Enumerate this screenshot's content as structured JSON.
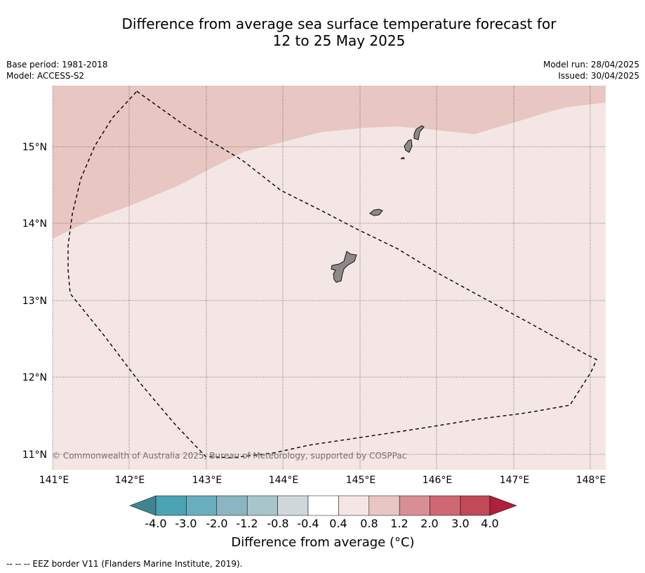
{
  "title": {
    "line1": "Difference from average sea surface temperature forecast for",
    "line2": "12 to 25 May 2025"
  },
  "meta": {
    "base_period": "Base period: 1981-2018",
    "model": "Model: ACCESS-S2",
    "model_run": "Model run: 28/04/2025",
    "issued": "Issued: 30/04/2025"
  },
  "map": {
    "lat_labels": [
      "15°N",
      "14°N",
      "13°N",
      "12°N",
      "11°N"
    ],
    "lon_labels": [
      "141°E",
      "142°E",
      "143°E",
      "144°E",
      "145°E",
      "146°E",
      "147°E",
      "148°E"
    ],
    "copyright": "© Commonwealth of Australia 2025, Bureau of Meteorology, supported by COSPPac",
    "colors": {
      "anomaly_0_4_to_0_8": "#f4e6e4",
      "anomaly_0_8_to_1_2": "#e8c6c1",
      "land": "#8c8988"
    }
  },
  "colorbar": {
    "labels": [
      "-4.0",
      "-3.0",
      "-2.0",
      "-1.2",
      "-0.8",
      "-0.4",
      "0.4",
      "0.8",
      "1.2",
      "2.0",
      "3.0",
      "4.0"
    ],
    "colors": [
      "#3f8591",
      "#4aa4b4",
      "#69aebd",
      "#8ab6c2",
      "#a8c5cb",
      "#d0d8db",
      "#ffffff",
      "#f4e6e4",
      "#e8c6c1",
      "#d98e95",
      "#cf6873",
      "#c24957",
      "#b01f3b"
    ],
    "title": "Difference from average (°C)"
  },
  "footnote": "--  --  -- EEZ border V11 (Flanders Marine Institute, 2019)."
}
